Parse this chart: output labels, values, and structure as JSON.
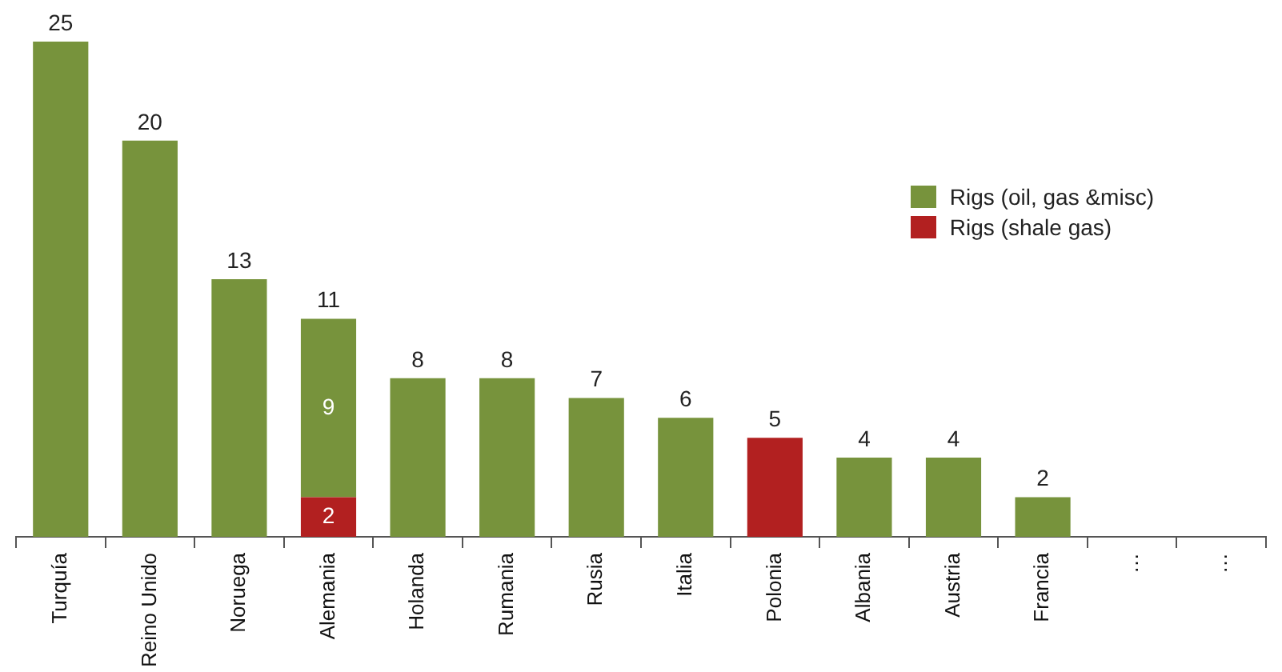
{
  "chart_data": {
    "type": "bar",
    "stacked": true,
    "categories": [
      "Turquía",
      "Reino Unido",
      "Noruega",
      "Alemania",
      "Holanda",
      "Rumania",
      "Rusia",
      "Italia",
      "Polonia",
      "Albania",
      "Austria",
      "Francia",
      "…",
      "…"
    ],
    "series": [
      {
        "name": "Rigs (shale gas)",
        "color": "#b22020",
        "values": [
          null,
          null,
          null,
          2,
          null,
          null,
          null,
          null,
          5,
          null,
          null,
          null,
          null,
          null
        ],
        "value_labels": [
          null,
          null,
          null,
          "2",
          null,
          null,
          null,
          null,
          null,
          null,
          null,
          null,
          null,
          null
        ]
      },
      {
        "name": "Rigs (oil, gas &misc)",
        "color": "#77933c",
        "values": [
          25,
          20,
          13,
          9,
          8,
          8,
          7,
          6,
          null,
          4,
          4,
          2,
          null,
          null
        ],
        "value_labels": [
          null,
          null,
          null,
          "9",
          null,
          null,
          null,
          null,
          null,
          null,
          null,
          null,
          null,
          null
        ]
      }
    ],
    "totals": [
      "25",
      "20",
      "13",
      "11",
      "8",
      "8",
      "7",
      "6",
      "5",
      "4",
      "4",
      "2",
      null,
      null
    ],
    "legend": "right",
    "grid": false
  }
}
